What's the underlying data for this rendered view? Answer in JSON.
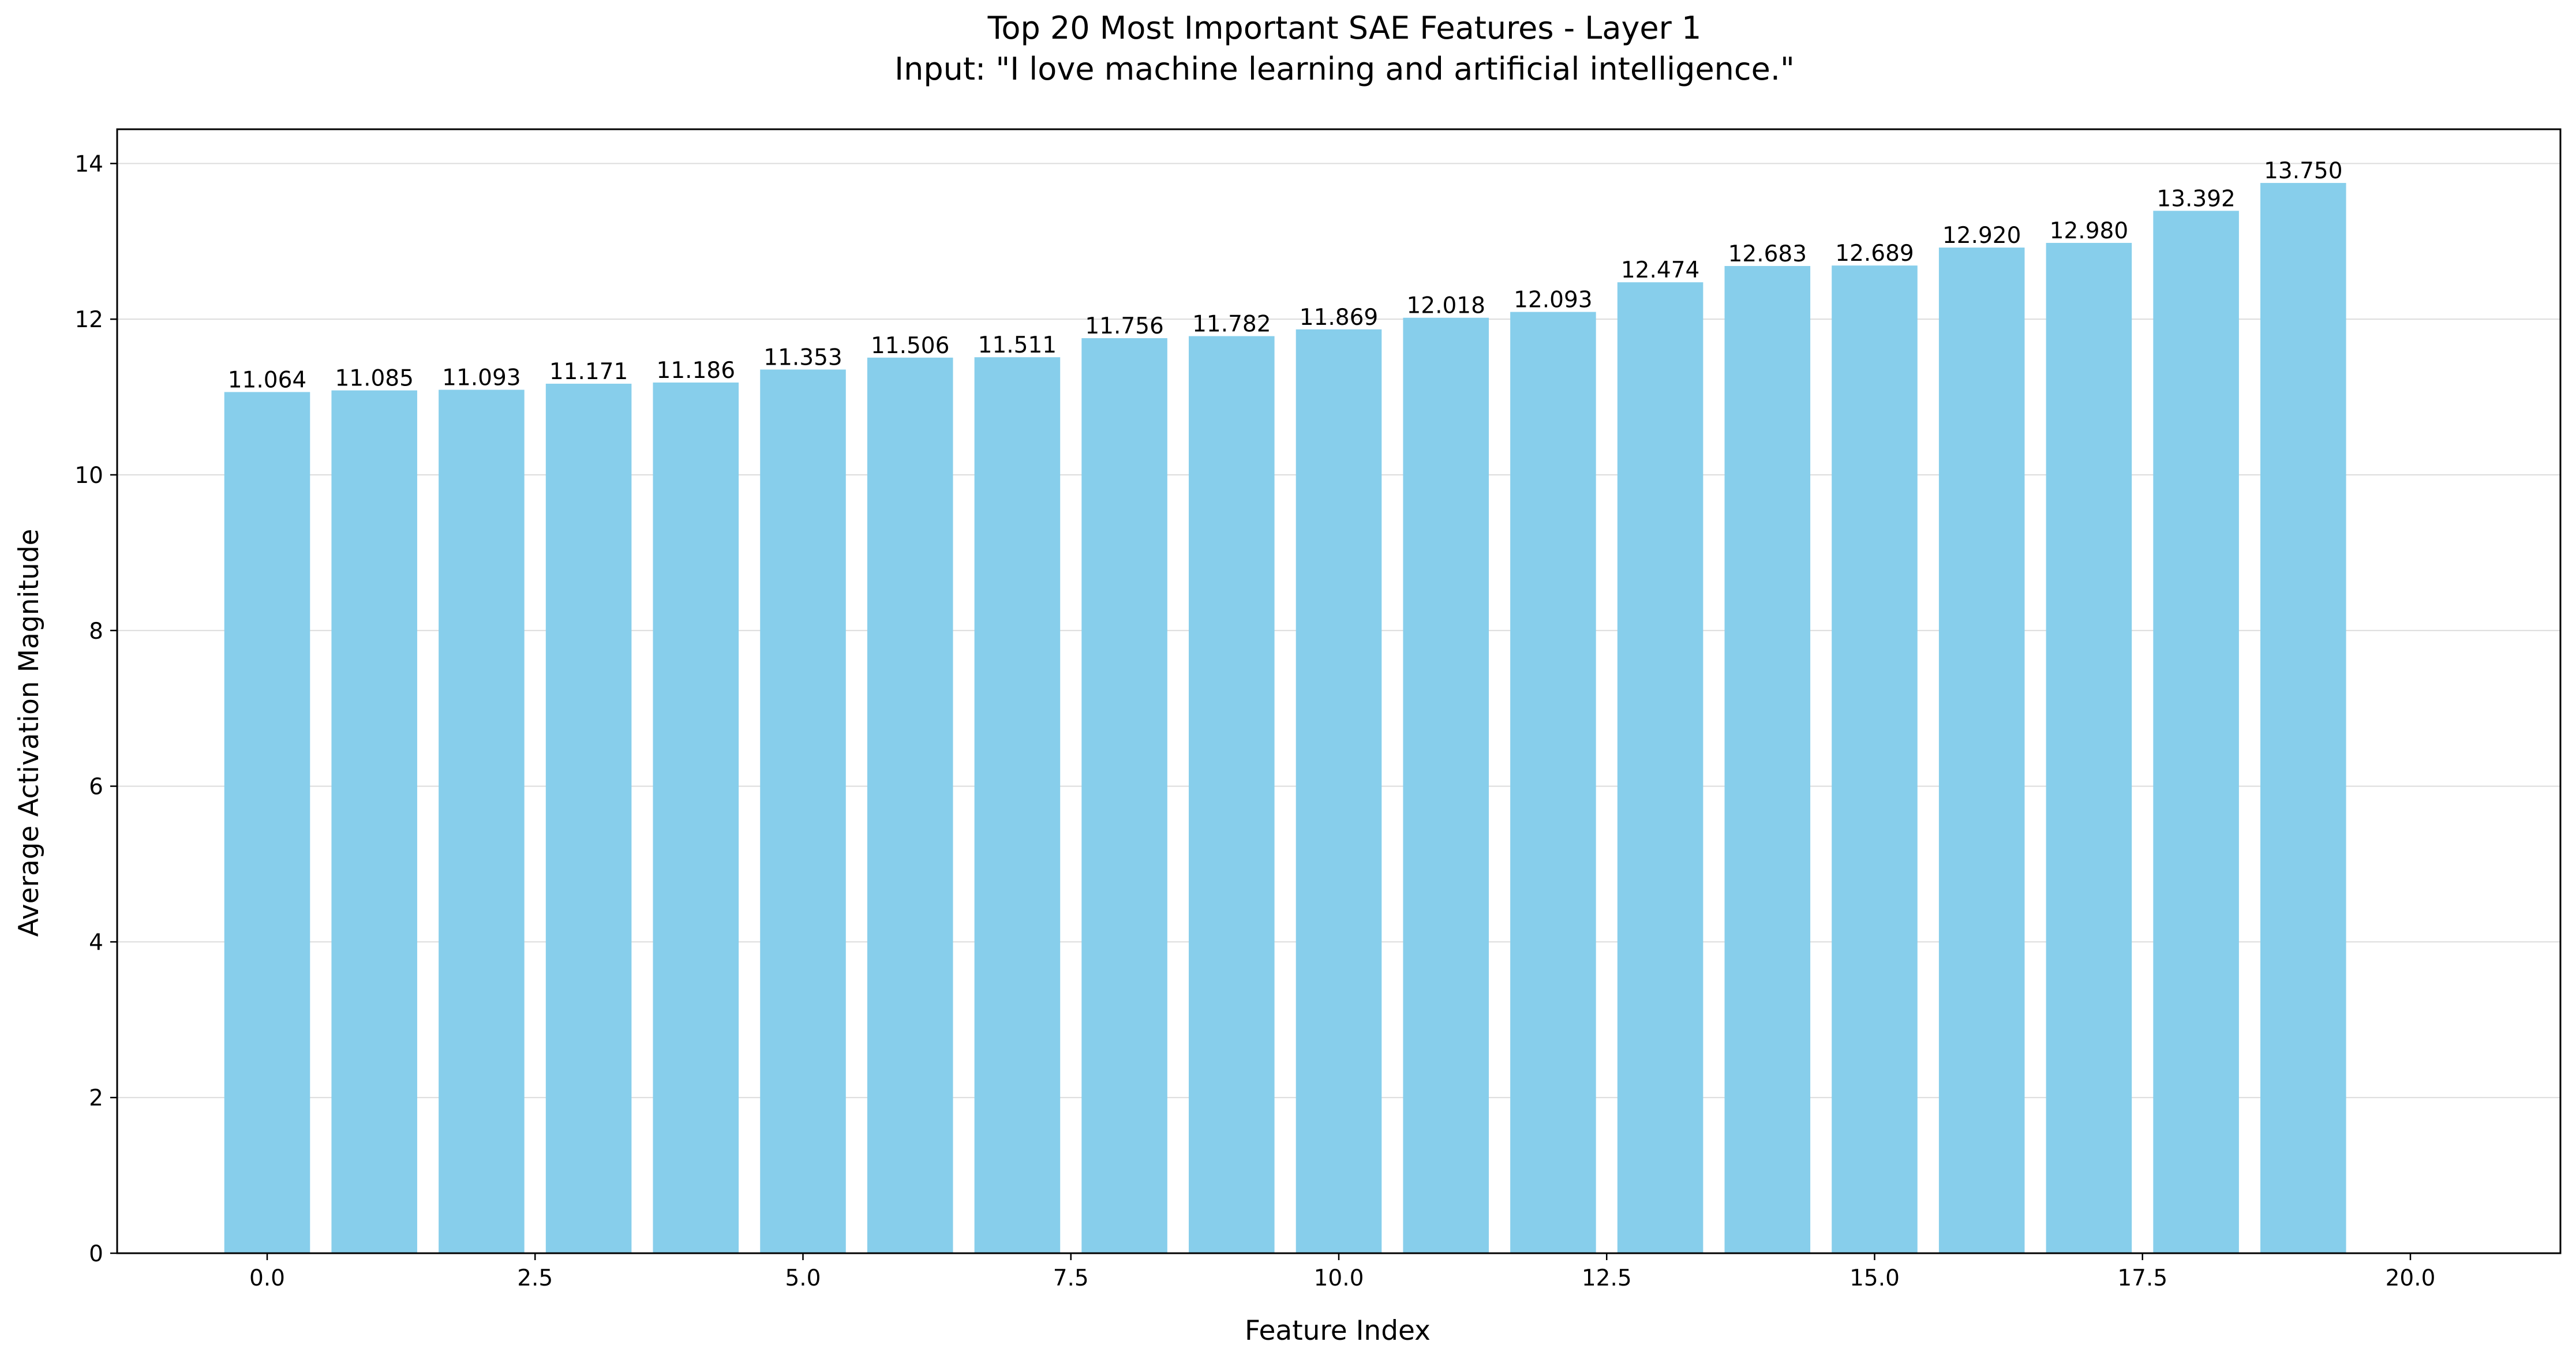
{
  "chart_data": {
    "type": "bar",
    "title_line1": "Top 20 Most Important SAE Features - Layer 1",
    "title_line2": "Input: \"I love machine learning and artificial intelligence.\"",
    "xlabel": "Feature Index",
    "ylabel": "Average Activation Magnitude",
    "x": [
      0,
      1,
      2,
      3,
      4,
      5,
      6,
      7,
      8,
      9,
      10,
      11,
      12,
      13,
      14,
      15,
      16,
      17,
      18,
      19
    ],
    "values": [
      11.064,
      11.085,
      11.093,
      11.171,
      11.186,
      11.353,
      11.506,
      11.511,
      11.756,
      11.782,
      11.869,
      12.018,
      12.093,
      12.474,
      12.683,
      12.689,
      12.92,
      12.98,
      13.392,
      13.75
    ],
    "value_labels": [
      "11.064",
      "11.085",
      "11.093",
      "11.171",
      "11.186",
      "11.353",
      "11.506",
      "11.511",
      "11.756",
      "11.782",
      "11.869",
      "12.018",
      "12.093",
      "12.474",
      "12.683",
      "12.689",
      "12.920",
      "12.980",
      "13.392",
      "13.750"
    ],
    "xlim": [
      -1.4,
      21.4
    ],
    "ylim": [
      0,
      14.44
    ],
    "xticks": [
      0.0,
      2.5,
      5.0,
      7.5,
      10.0,
      12.5,
      15.0,
      17.5,
      20.0
    ],
    "xtick_labels": [
      "0.0",
      "2.5",
      "5.0",
      "7.5",
      "10.0",
      "12.5",
      "15.0",
      "17.5",
      "20.0"
    ],
    "yticks": [
      0,
      2,
      4,
      6,
      8,
      10,
      12,
      14
    ],
    "ytick_labels": [
      "0",
      "2",
      "4",
      "6",
      "8",
      "10",
      "12",
      "14"
    ],
    "bar_color": "#87CEEB",
    "grid": "horizontal",
    "legend": "none"
  }
}
